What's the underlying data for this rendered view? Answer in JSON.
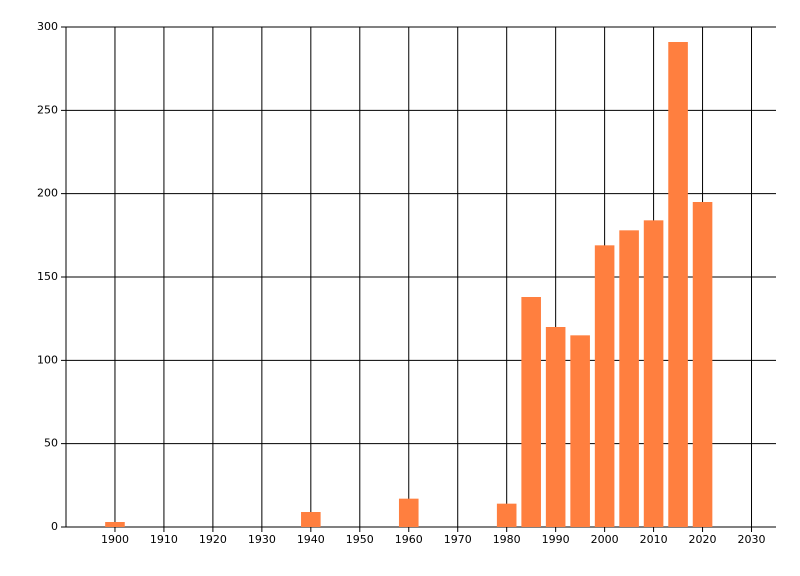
{
  "chart_data": {
    "type": "bar",
    "x": [
      1900,
      1940,
      1960,
      1980,
      1985,
      1990,
      1995,
      2000,
      2005,
      2010,
      2015,
      2020
    ],
    "values": [
      3,
      9,
      17,
      14,
      138,
      120,
      115,
      169,
      178,
      184,
      291,
      195
    ],
    "color": "#ff7f3f",
    "xlim": [
      1890,
      2035
    ],
    "xticks": [
      1900,
      1910,
      1920,
      1930,
      1940,
      1950,
      1960,
      1970,
      1980,
      1990,
      2000,
      2010,
      2020,
      2030
    ],
    "ylim": [
      0,
      300
    ],
    "yticks": [
      0,
      50,
      100,
      150,
      200,
      250,
      300
    ],
    "grid": true
  }
}
